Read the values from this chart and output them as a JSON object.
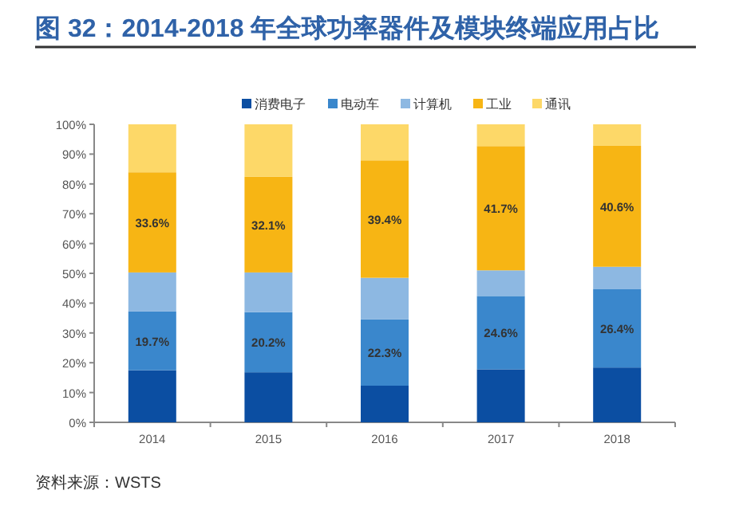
{
  "chart_data": {
    "type": "bar",
    "stacked": true,
    "title": "图 32：2014-2018 年全球功率器件及模块终端应用占比",
    "categories": [
      "2014",
      "2015",
      "2016",
      "2017",
      "2018"
    ],
    "series": [
      {
        "name": "消费电子",
        "color": "#0b4ea2",
        "values": [
          17.5,
          16.8,
          12.3,
          17.8,
          18.4
        ]
      },
      {
        "name": "电动车",
        "color": "#3a87cc",
        "values": [
          19.7,
          20.2,
          22.3,
          24.6,
          26.4
        ],
        "value_labels": [
          "19.7%",
          "20.2%",
          "22.3%",
          "24.6%",
          "26.4%"
        ]
      },
      {
        "name": "计算机",
        "color": "#8db8e2",
        "values": [
          13.1,
          13.3,
          13.9,
          8.6,
          7.4
        ]
      },
      {
        "name": "工业",
        "color": "#f7b514",
        "values": [
          33.6,
          32.1,
          39.4,
          41.7,
          40.6
        ],
        "value_labels": [
          "33.6%",
          "32.1%",
          "39.4%",
          "41.7%",
          "40.6%"
        ]
      },
      {
        "name": "通讯",
        "color": "#fdd868",
        "values": [
          16.1,
          17.6,
          12.1,
          7.3,
          7.2
        ]
      }
    ],
    "ylim": [
      0,
      100
    ],
    "yticks": [
      {
        "value": 0,
        "label": "0%"
      },
      {
        "value": 10,
        "label": "10%"
      },
      {
        "value": 20,
        "label": "20%"
      },
      {
        "value": 30,
        "label": "30%"
      },
      {
        "value": 40,
        "label": "40%"
      },
      {
        "value": 50,
        "label": "50%"
      },
      {
        "value": 60,
        "label": "60%"
      },
      {
        "value": 70,
        "label": "70%"
      },
      {
        "value": 80,
        "label": "80%"
      },
      {
        "value": 90,
        "label": "90%"
      },
      {
        "value": 100,
        "label": "100%"
      }
    ],
    "grid": false,
    "legend": "top",
    "annotations": [
      "资料来源：WSTS"
    ]
  }
}
